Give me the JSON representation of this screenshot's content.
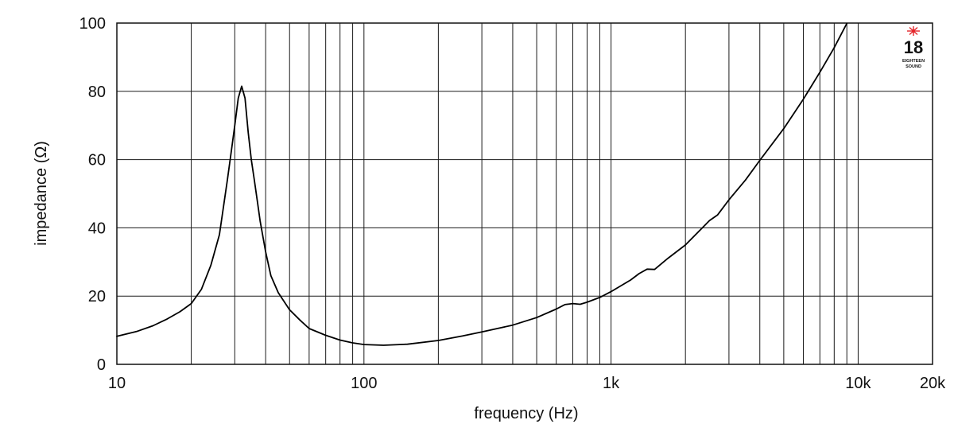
{
  "chart_data": {
    "type": "line",
    "title": "",
    "xlabel": "frequency (Hz)",
    "ylabel": "impedance (Ω)",
    "x_scale": "log",
    "xlim": [
      10,
      20000
    ],
    "ylim": [
      0,
      100
    ],
    "grid": true,
    "legend": "none",
    "x_ticks": [
      {
        "value": 10,
        "label": "10"
      },
      {
        "value": 100,
        "label": "100"
      },
      {
        "value": 1000,
        "label": "1k"
      },
      {
        "value": 10000,
        "label": "10k"
      },
      {
        "value": 20000,
        "label": "20k"
      }
    ],
    "y_ticks": [
      {
        "value": 0,
        "label": "0"
      },
      {
        "value": 20,
        "label": "20"
      },
      {
        "value": 40,
        "label": "40"
      },
      {
        "value": 60,
        "label": "60"
      },
      {
        "value": 80,
        "label": "80"
      },
      {
        "value": 100,
        "label": "100"
      }
    ],
    "series": [
      {
        "color": "#000000",
        "x": [
          10,
          12,
          14,
          16,
          18,
          20,
          22,
          24,
          26,
          28,
          29,
          30,
          31,
          32,
          33,
          34,
          35,
          36,
          37,
          38,
          40,
          42,
          45,
          50,
          55,
          60,
          70,
          80,
          90,
          100,
          120,
          150,
          200,
          250,
          300,
          400,
          500,
          600,
          650,
          700,
          750,
          800,
          900,
          1000,
          1200,
          1300,
          1400,
          1500,
          1700,
          2000,
          2500,
          2700,
          3000,
          3500,
          4000,
          5000,
          6000,
          7000,
          8000,
          9000
        ],
        "y": [
          8.2,
          9.6,
          11.3,
          13.3,
          15.4,
          17.8,
          22,
          29,
          38,
          54,
          62,
          70,
          78,
          81.5,
          78,
          68,
          60,
          54,
          48,
          42,
          33,
          26,
          21,
          16,
          13,
          10.5,
          8.5,
          7.1,
          6.3,
          5.8,
          5.6,
          5.9,
          7,
          8.3,
          9.5,
          11.5,
          13.7,
          16.2,
          17.5,
          17.8,
          17.6,
          18.2,
          19.6,
          21.3,
          24.7,
          26.6,
          27.9,
          27.8,
          31.1,
          35,
          42.1,
          43.8,
          48.2,
          54,
          59.8,
          69.1,
          77.7,
          85.6,
          92.8,
          99.9
        ]
      }
    ]
  },
  "logo": {
    "number": "18",
    "line1": "EIGHTEEN",
    "line2": "SOUND",
    "accent": "#e4262b"
  }
}
